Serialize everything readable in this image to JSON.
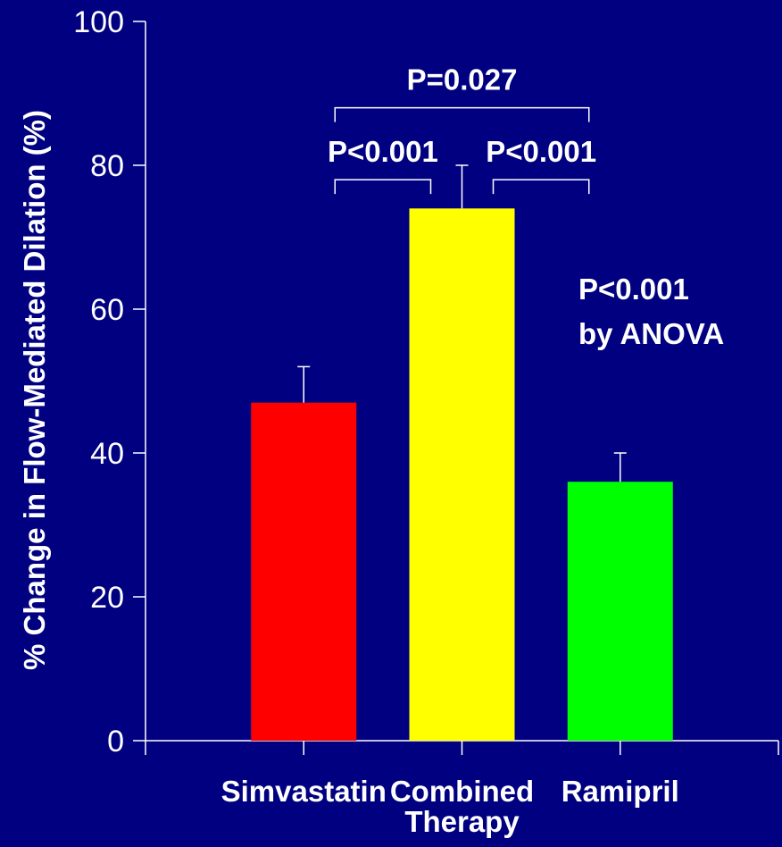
{
  "chart_data": {
    "type": "bar",
    "categories": [
      "Simvastatin",
      "Combined Therapy",
      "Ramipril"
    ],
    "category_label_lines": [
      [
        "Simvastatin"
      ],
      [
        "Combined",
        "Therapy"
      ],
      [
        "Ramipril"
      ]
    ],
    "values": [
      47,
      74,
      36
    ],
    "errors": [
      5,
      6,
      4
    ],
    "bar_colors": [
      "#ff0000",
      "#ffff00",
      "#00ff00"
    ],
    "ylabel": "% Change in Flow-Mediated Dilation (%)",
    "ylim": [
      0,
      100
    ],
    "yticks": [
      0,
      20,
      40,
      60,
      80,
      100
    ],
    "grid": false,
    "comparisons": [
      {
        "from": 0,
        "to": 2,
        "label": "P=0.027",
        "level": 88
      },
      {
        "from": 0,
        "to": 1,
        "label": "P<0.001",
        "level": 78
      },
      {
        "from": 1,
        "to": 2,
        "label": "P<0.001",
        "level": 78
      }
    ],
    "annotation_lines": [
      "P<0.001",
      "by ANOVA"
    ]
  },
  "colors": {
    "background": "#000080",
    "axis": "#ffffff",
    "text": "#ffffff"
  }
}
